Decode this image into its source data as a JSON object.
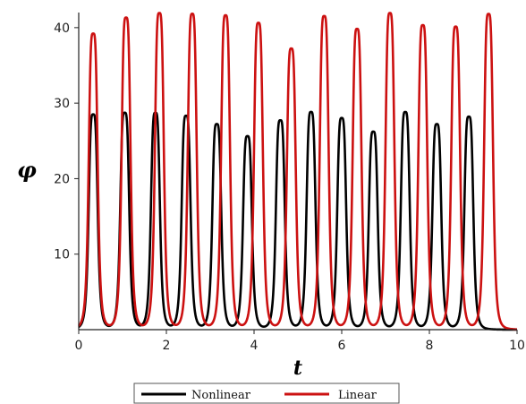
{
  "chart_data": {
    "type": "line",
    "xlabel": "t",
    "ylabel": "φ",
    "xlim": [
      0,
      10
    ],
    "ylim": [
      0,
      42
    ],
    "x_ticks": [
      "0",
      "2",
      "4",
      "6",
      "8",
      "10"
    ],
    "y_ticks": [
      "10",
      "20",
      "30",
      "40"
    ],
    "grid": false,
    "legend_position": "bottom-center",
    "series": [
      {
        "name": "Nonlinear",
        "color": "#000000",
        "peaks_t": [
          0.33,
          1.05,
          1.75,
          2.45,
          3.15,
          3.85,
          4.6,
          5.3,
          6.0,
          6.72,
          7.45,
          8.17,
          8.9
        ],
        "peaks_phi": [
          28.5,
          28.7,
          28.7,
          28.3,
          27.2,
          25.6,
          27.7,
          28.8,
          28.0,
          26.2,
          28.8,
          27.2,
          28.2
        ]
      },
      {
        "name": "Linear",
        "color": "#cc1111",
        "peaks_t": [
          0.33,
          1.08,
          1.84,
          2.59,
          3.35,
          4.1,
          4.85,
          5.6,
          6.35,
          7.1,
          7.85,
          8.6,
          9.35
        ],
        "peaks_phi": [
          39.2,
          41.3,
          41.9,
          41.8,
          41.6,
          40.6,
          37.2,
          41.5,
          39.8,
          41.9,
          40.3,
          40.1,
          41.8
        ]
      }
    ]
  }
}
